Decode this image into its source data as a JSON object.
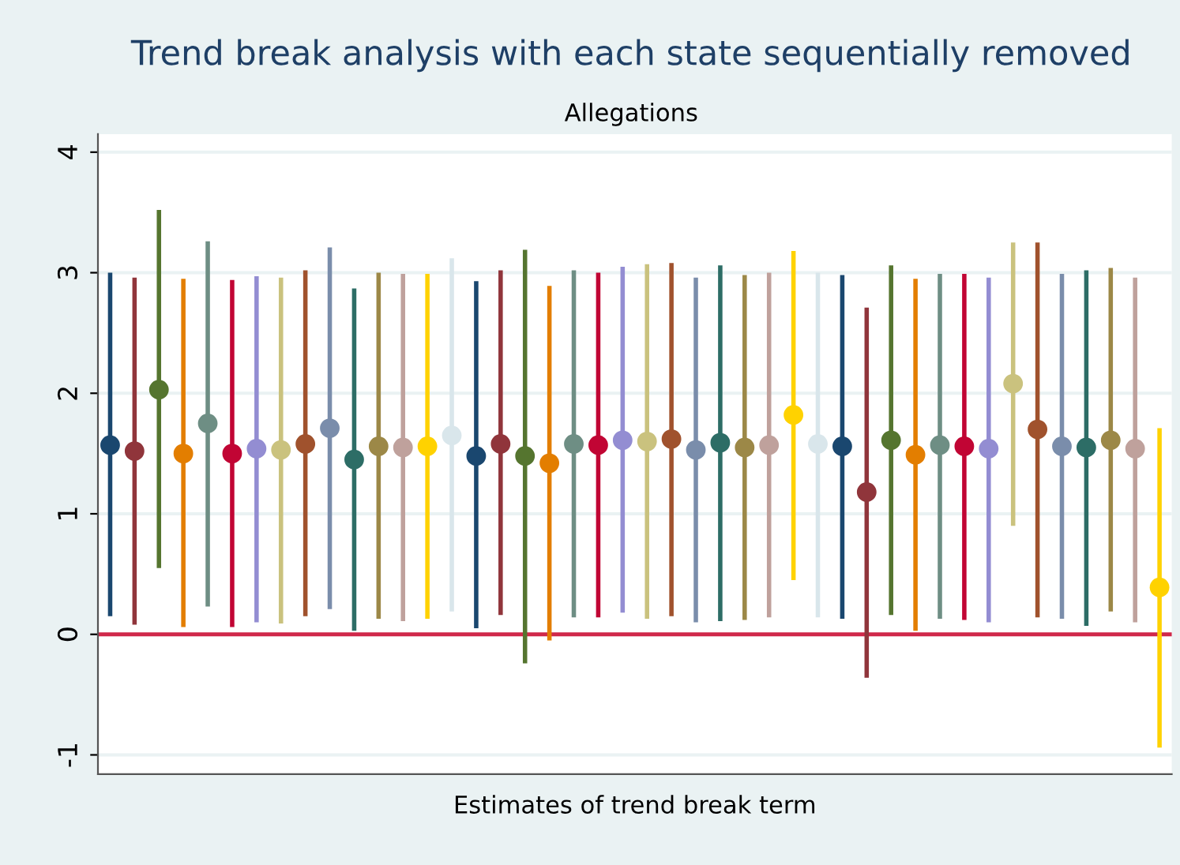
{
  "chart_data": {
    "type": "scatter",
    "title": "Trend break analysis with each state sequentially removed",
    "subtitle": "Allegations",
    "xlabel": "Estimates of trend break term",
    "categories": [
      null,
      null,
      null,
      null,
      null,
      null,
      null,
      null,
      null,
      null,
      null,
      null,
      null,
      null,
      null,
      null,
      null,
      null,
      null,
      null,
      null,
      null,
      null,
      null,
      null,
      null,
      null,
      null,
      null,
      null,
      null,
      null,
      null,
      null,
      null,
      null,
      null,
      null,
      null,
      null,
      null,
      null,
      null,
      null
    ],
    "values": [
      1.57,
      1.52,
      2.03,
      1.5,
      1.75,
      1.5,
      1.54,
      1.53,
      1.58,
      1.71,
      1.45,
      1.56,
      1.55,
      1.56,
      1.65,
      1.48,
      1.58,
      1.48,
      1.42,
      1.58,
      1.57,
      1.61,
      1.6,
      1.62,
      1.53,
      1.59,
      1.55,
      1.57,
      1.82,
      1.58,
      1.56,
      1.18,
      1.61,
      1.49,
      1.57,
      1.56,
      1.54,
      2.08,
      1.7,
      1.56,
      1.55,
      1.61,
      1.54,
      0.39
    ],
    "errors": [
      [
        0.15,
        3.0
      ],
      [
        0.08,
        2.96
      ],
      [
        0.55,
        3.52
      ],
      [
        0.06,
        2.95
      ],
      [
        0.23,
        3.26
      ],
      [
        0.06,
        2.94
      ],
      [
        0.1,
        2.97
      ],
      [
        0.09,
        2.96
      ],
      [
        0.15,
        3.02
      ],
      [
        0.21,
        3.21
      ],
      [
        0.03,
        2.87
      ],
      [
        0.13,
        3.0
      ],
      [
        0.11,
        2.99
      ],
      [
        0.13,
        2.99
      ],
      [
        0.19,
        3.12
      ],
      [
        0.05,
        2.93
      ],
      [
        0.16,
        3.02
      ],
      [
        -0.24,
        3.19
      ],
      [
        -0.05,
        2.89
      ],
      [
        0.14,
        3.02
      ],
      [
        0.14,
        3.0
      ],
      [
        0.18,
        3.05
      ],
      [
        0.13,
        3.07
      ],
      [
        0.15,
        3.08
      ],
      [
        0.1,
        2.96
      ],
      [
        0.11,
        3.06
      ],
      [
        0.12,
        2.98
      ],
      [
        0.14,
        3.0
      ],
      [
        0.45,
        3.18
      ],
      [
        0.14,
        3.0
      ],
      [
        0.13,
        2.98
      ],
      [
        -0.36,
        2.71
      ],
      [
        0.16,
        3.06
      ],
      [
        0.03,
        2.95
      ],
      [
        0.13,
        2.99
      ],
      [
        0.12,
        2.99
      ],
      [
        0.1,
        2.96
      ],
      [
        0.9,
        3.25
      ],
      [
        0.14,
        3.25
      ],
      [
        0.13,
        2.99
      ],
      [
        0.07,
        3.02
      ],
      [
        0.19,
        3.04
      ],
      [
        0.1,
        2.96
      ],
      [
        -0.94,
        1.71
      ]
    ],
    "colors": [
      "#1a476f",
      "#90353b",
      "#55752f",
      "#e37e00",
      "#6e8e84",
      "#c10534",
      "#938dd2",
      "#cac27e",
      "#a0522d",
      "#7a8dab",
      "#2d6d66",
      "#9c8847",
      "#bfa19c",
      "#ffd200",
      "#d9e6eb",
      "#1a476f",
      "#90353b",
      "#55752f",
      "#e37e00",
      "#6e8e84",
      "#c10534",
      "#938dd2",
      "#cac27e",
      "#a0522d",
      "#7a8dab",
      "#2d6d66",
      "#9c8847",
      "#bfa19c",
      "#ffd200",
      "#d9e6eb",
      "#1a476f",
      "#90353b",
      "#55752f",
      "#e37e00",
      "#6e8e84",
      "#c10534",
      "#938dd2",
      "#cac27e",
      "#a0522d",
      "#7a8dab",
      "#2d6d66",
      "#9c8847",
      "#bfa19c",
      "#ffd200"
    ],
    "ylim": [
      -1.16,
      4.15
    ],
    "yticks": [
      -1,
      0,
      1,
      2,
      3,
      4
    ],
    "grid": "y",
    "marker": "circle",
    "ref_lines": [
      {
        "axis": "y",
        "value": 0,
        "color": "#d0284a"
      }
    ]
  }
}
